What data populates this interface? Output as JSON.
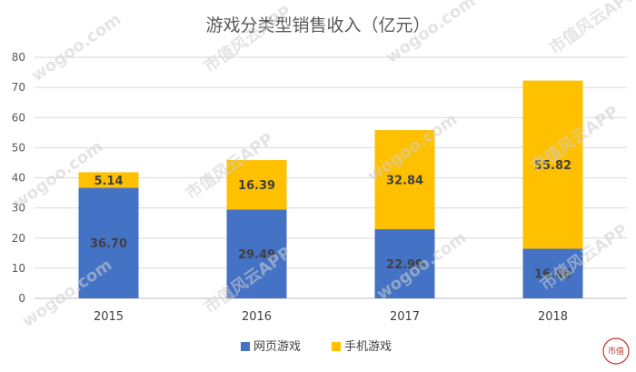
{
  "chart_data": {
    "type": "bar",
    "stacked": true,
    "title": "游戏分类型销售收入（亿元）",
    "categories": [
      "2015",
      "2016",
      "2017",
      "2018"
    ],
    "series": [
      {
        "name": "网页游戏",
        "color": "#4472C4",
        "values": [
          36.7,
          29.49,
          22.99,
          16.46
        ],
        "labels": [
          "36.70",
          "29.49",
          "22.99",
          "16.46"
        ]
      },
      {
        "name": "手机游戏",
        "color": "#FFC000",
        "values": [
          5.14,
          16.39,
          32.84,
          55.82
        ],
        "labels": [
          "5.14",
          "16.39",
          "32.84",
          "55.82"
        ]
      }
    ],
    "ylim": [
      0,
      80
    ],
    "yticks": [
      "0",
      "10",
      "20",
      "30",
      "40",
      "50",
      "60",
      "70",
      "80"
    ],
    "grid": true,
    "legend_position": "bottom"
  },
  "watermark": {
    "text": "市值风云APP",
    "site": "wogoo.com"
  },
  "logo": {
    "text": "市值"
  }
}
